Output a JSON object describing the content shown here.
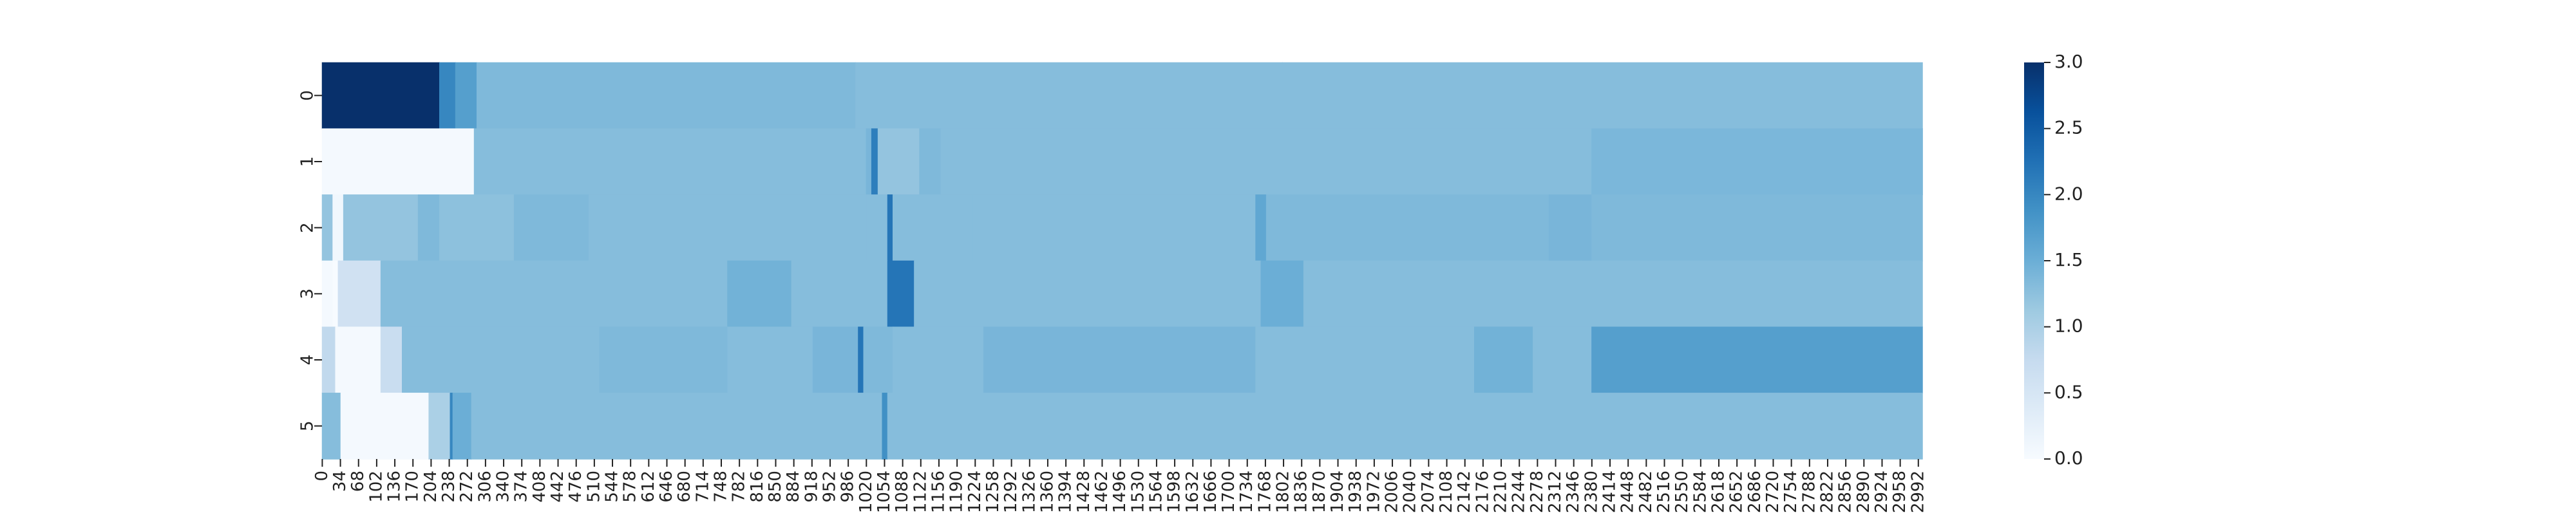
{
  "chart_data": {
    "type": "heatmap",
    "title": "",
    "xlabel": "",
    "ylabel": "",
    "colormap": "Blues",
    "value_range": [
      0,
      3
    ],
    "rows": [
      "0",
      "1",
      "2",
      "3",
      "4",
      "5"
    ],
    "x_tick_labels": [
      "0",
      "34",
      "68",
      "102",
      "136",
      "170",
      "204",
      "238",
      "272",
      "306",
      "340",
      "374",
      "408",
      "442",
      "476",
      "510",
      "544",
      "578",
      "612",
      "646",
      "680",
      "714",
      "748",
      "782",
      "816",
      "850",
      "884",
      "918",
      "952",
      "986",
      "1020",
      "1054",
      "1088",
      "1122",
      "1156",
      "1190",
      "1224",
      "1258",
      "1292",
      "1326",
      "1360",
      "1394",
      "1428",
      "1462",
      "1496",
      "1530",
      "1564",
      "1598",
      "1632",
      "1666",
      "1700",
      "1734",
      "1768",
      "1802",
      "1836",
      "1870",
      "1904",
      "1938",
      "1972",
      "2006",
      "2040",
      "2074",
      "2108",
      "2142",
      "2176",
      "2210",
      "2244",
      "2278",
      "2312",
      "2346",
      "2380",
      "2414",
      "2448",
      "2482",
      "2516",
      "2550",
      "2584",
      "2618",
      "2652",
      "2686",
      "2720",
      "2754",
      "2788",
      "2822",
      "2856",
      "2890",
      "2924",
      "2958",
      "2992"
    ],
    "x_range": [
      0,
      3000
    ],
    "colorbar_ticks": [
      "0.0",
      "0.5",
      "1.0",
      "1.5",
      "2.0",
      "2.5",
      "3.0"
    ],
    "row_segments": [
      [
        [
          0,
          220,
          3.0
        ],
        [
          220,
          250,
          2.0
        ],
        [
          250,
          290,
          1.7
        ],
        [
          290,
          1000,
          1.35
        ],
        [
          1000,
          1800,
          1.3
        ],
        [
          1800,
          3000,
          1.3
        ]
      ],
      [
        [
          0,
          285,
          0.05
        ],
        [
          285,
          1020,
          1.3
        ],
        [
          1020,
          1030,
          1.4
        ],
        [
          1030,
          1042,
          2.1
        ],
        [
          1042,
          1060,
          1.2
        ],
        [
          1060,
          1120,
          1.2
        ],
        [
          1120,
          1160,
          1.35
        ],
        [
          1160,
          3000,
          1.3
        ],
        [
          2380,
          3000,
          1.38
        ]
      ],
      [
        [
          0,
          20,
          1.2
        ],
        [
          20,
          40,
          0.1
        ],
        [
          40,
          180,
          1.2
        ],
        [
          180,
          220,
          1.35
        ],
        [
          220,
          360,
          1.25
        ],
        [
          360,
          500,
          1.35
        ],
        [
          500,
          1020,
          1.3
        ],
        [
          1020,
          1060,
          1.3
        ],
        [
          1060,
          1070,
          2.2
        ],
        [
          1070,
          1220,
          1.3
        ],
        [
          1220,
          1750,
          1.3
        ],
        [
          1750,
          1770,
          1.6
        ],
        [
          1770,
          2300,
          1.35
        ],
        [
          2300,
          2380,
          1.4
        ],
        [
          2380,
          3000,
          1.35
        ]
      ],
      [
        [
          0,
          20,
          0.05
        ],
        [
          20,
          30,
          0.0
        ],
        [
          30,
          110,
          0.6
        ],
        [
          110,
          760,
          1.3
        ],
        [
          760,
          880,
          1.45
        ],
        [
          880,
          1060,
          1.3
        ],
        [
          1060,
          1110,
          2.2
        ],
        [
          1110,
          1760,
          1.3
        ],
        [
          1760,
          1840,
          1.5
        ],
        [
          1840,
          2360,
          1.3
        ],
        [
          2360,
          3000,
          1.3
        ]
      ],
      [
        [
          0,
          25,
          0.8
        ],
        [
          25,
          110,
          0.05
        ],
        [
          110,
          150,
          0.7
        ],
        [
          150,
          520,
          1.3
        ],
        [
          520,
          760,
          1.35
        ],
        [
          760,
          920,
          1.3
        ],
        [
          920,
          1005,
          1.4
        ],
        [
          1005,
          1015,
          2.2
        ],
        [
          1015,
          1070,
          1.35
        ],
        [
          1070,
          1240,
          1.3
        ],
        [
          1240,
          1750,
          1.4
        ],
        [
          1750,
          2160,
          1.3
        ],
        [
          2160,
          2270,
          1.45
        ],
        [
          2270,
          2380,
          1.3
        ],
        [
          2380,
          3000,
          1.7
        ]
      ],
      [
        [
          0,
          35,
          1.3
        ],
        [
          35,
          200,
          0.05
        ],
        [
          200,
          240,
          1.0
        ],
        [
          240,
          245,
          2.0
        ],
        [
          245,
          280,
          1.5
        ],
        [
          280,
          1050,
          1.3
        ],
        [
          1050,
          1060,
          1.9
        ],
        [
          1060,
          3000,
          1.3
        ]
      ]
    ]
  }
}
